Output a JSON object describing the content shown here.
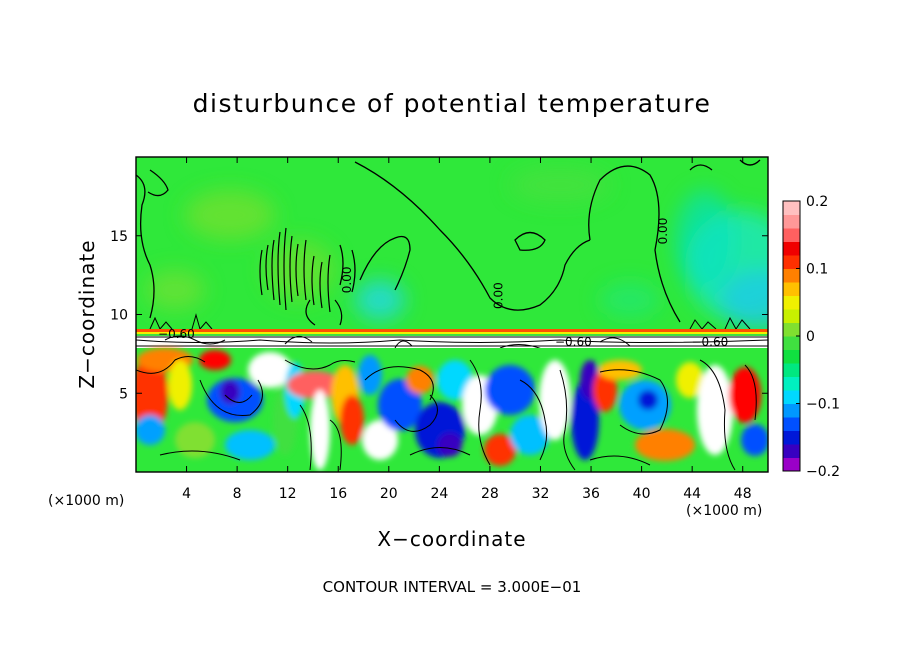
{
  "chart_data": {
    "type": "heatmap",
    "title": "disturbunce of potential temperature",
    "xlabel": "X−coordinate",
    "ylabel": "Z−coordinate",
    "x_unit": "(×1000 m)",
    "x_unit_right": "(×1000 m)",
    "xlim": [
      0,
      50
    ],
    "ylim": [
      0,
      20
    ],
    "x_ticks": [
      4,
      8,
      12,
      16,
      20,
      24,
      28,
      32,
      36,
      40,
      44,
      48
    ],
    "y_ticks": [
      5,
      10,
      15
    ],
    "colorbar": {
      "vmin": -0.2,
      "vmax": 0.2,
      "tick_values": [
        0.2,
        0.1,
        0,
        -0.1,
        -0.2
      ],
      "tick_labels": [
        "0.2",
        "0.1",
        "0",
        "−0.1",
        "−0.2"
      ],
      "colors": [
        "#9a00c8",
        "#3800c0",
        "#0018d8",
        "#0050ff",
        "#0098ff",
        "#00d8ff",
        "#00f0c0",
        "#00e880",
        "#10e040",
        "#40e040",
        "#80e030",
        "#c8f000",
        "#f0f000",
        "#ffc000",
        "#ff8000",
        "#ff3000",
        "#f00000",
        "#ff6060",
        "#ff9898",
        "#ffc0c0"
      ]
    },
    "contour_labels": [
      {
        "text": "0.00",
        "x": 17,
        "z": 12.2,
        "rotate": -90
      },
      {
        "text": "0.00",
        "x": 29,
        "z": 11.2,
        "rotate": -90
      },
      {
        "text": "0.00",
        "x": 42,
        "z": 15.3,
        "rotate": -90
      },
      {
        "text": "−0.60",
        "x": 34.6,
        "z": 8.0,
        "rotate": 0
      },
      {
        "text": "−0.60",
        "x": 45.4,
        "z": 8.0,
        "rotate": 0
      },
      {
        "text": "−0.60",
        "x": 3.2,
        "z": 8.5,
        "rotate": 0
      }
    ],
    "contour_interval_text": "CONTOUR INTERVAL = 3.000E−01"
  }
}
